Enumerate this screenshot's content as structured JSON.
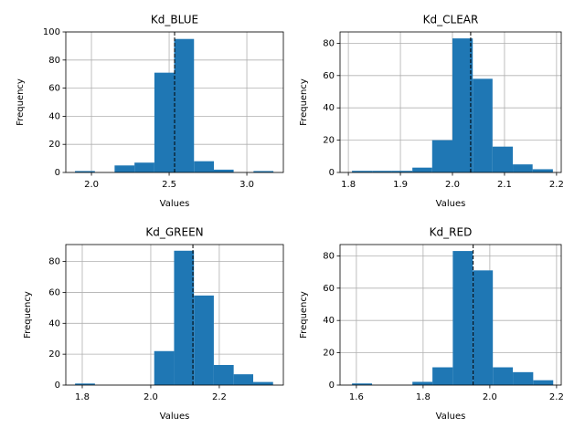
{
  "chart_data": [
    {
      "type": "histogram",
      "title": "Kd_BLUE",
      "xlabel": "Values",
      "ylabel": "Frequency",
      "color": "#1f77b4",
      "grid": true,
      "bins": [
        1.894,
        2.022,
        2.149,
        2.277,
        2.405,
        2.532,
        2.66,
        2.788,
        2.915,
        3.043,
        3.171
      ],
      "values": [
        1,
        0,
        5,
        7,
        71,
        95,
        8,
        2,
        0,
        1
      ],
      "mean": 2.535,
      "xlim": [
        1.835,
        3.235
      ],
      "ylim": [
        0,
        100
      ],
      "xticks": [
        {
          "value": 2,
          "label": "2.0"
        },
        2.5,
        {
          "value": 3,
          "label": "3.0"
        }
      ],
      "yticks": [
        0,
        20,
        40,
        60,
        80,
        100
      ]
    },
    {
      "type": "histogram",
      "title": "Kd_CLEAR",
      "xlabel": "Values",
      "ylabel": "Frequency",
      "color": "#1f77b4",
      "grid": true,
      "bins": [
        1.807,
        1.846,
        1.884,
        1.923,
        1.961,
        2.0,
        2.039,
        2.077,
        2.116,
        2.154,
        2.193
      ],
      "values": [
        1,
        1,
        1,
        3,
        20,
        83,
        58,
        16,
        5,
        2
      ],
      "mean": 2.035,
      "xlim": [
        1.784,
        2.209
      ],
      "ylim": [
        0,
        87
      ],
      "xticks": [
        1.8,
        1.9,
        {
          "value": 2,
          "label": "2.0"
        },
        2.1,
        2.2
      ],
      "yticks": [
        0,
        20,
        40,
        60,
        80
      ]
    },
    {
      "type": "histogram",
      "title": "Kd_GREEN",
      "xlabel": "Values",
      "ylabel": "Frequency",
      "color": "#1f77b4",
      "grid": true,
      "bins": [
        1.779,
        1.837,
        1.895,
        1.952,
        2.01,
        2.068,
        2.126,
        2.184,
        2.242,
        2.299,
        2.357
      ],
      "values": [
        1,
        0,
        0,
        0,
        22,
        87,
        58,
        13,
        7,
        2
      ],
      "mean": 2.123,
      "xlim": [
        1.752,
        2.387
      ],
      "ylim": [
        0,
        91
      ],
      "xticks": [
        1.8,
        {
          "value": 2,
          "label": "2.0"
        },
        2.2
      ],
      "yticks": [
        0,
        20,
        40,
        60,
        80
      ]
    },
    {
      "type": "histogram",
      "title": "Kd_RED",
      "xlabel": "Values",
      "ylabel": "Frequency",
      "color": "#1f77b4",
      "grid": true,
      "bins": [
        1.587,
        1.647,
        1.708,
        1.768,
        1.828,
        1.889,
        1.949,
        2.009,
        2.069,
        2.13,
        2.19
      ],
      "values": [
        1,
        0,
        0,
        2,
        11,
        83,
        71,
        11,
        8,
        3
      ],
      "mean": 1.95,
      "xlim": [
        1.551,
        2.214
      ],
      "ylim": [
        0,
        87
      ],
      "xticks": [
        1.6,
        1.8,
        {
          "value": 2,
          "label": "2.0"
        },
        2.2
      ],
      "yticks": [
        0,
        20,
        40,
        60,
        80
      ]
    }
  ]
}
